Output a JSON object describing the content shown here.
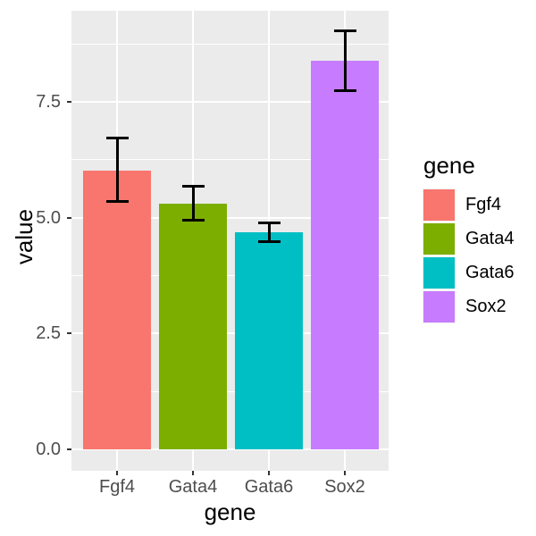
{
  "chart_data": {
    "type": "bar",
    "title": "",
    "xlabel": "gene",
    "ylabel": "value",
    "categories": [
      "Fgf4",
      "Gata4",
      "Gata6",
      "Sox2"
    ],
    "series": [
      {
        "name": "value",
        "values": [
          6.02,
          5.31,
          4.68,
          8.38
        ]
      }
    ],
    "error_bars": {
      "ymin": [
        5.35,
        4.95,
        4.49,
        7.74
      ],
      "ymax": [
        6.72,
        5.67,
        4.89,
        9.03
      ]
    },
    "bar_colors": [
      "#F8766D",
      "#7CAE00",
      "#00BFC4",
      "#C77CFF"
    ],
    "ylim": [
      -0.46,
      9.47
    ],
    "yticks": {
      "values": [
        0,
        2.5,
        5,
        7.5
      ],
      "labels": [
        "0.0",
        "2.5",
        "5.0",
        "7.5"
      ]
    },
    "minor_yticks": [
      1.25,
      3.75,
      6.25,
      8.75
    ],
    "grid": "on",
    "legend": {
      "position": "right",
      "title": "gene",
      "entries": [
        {
          "label": "Fgf4",
          "color": "#F8766D"
        },
        {
          "label": "Gata4",
          "color": "#7CAE00"
        },
        {
          "label": "Gata6",
          "color": "#00BFC4"
        },
        {
          "label": "Sox2",
          "color": "#C77CFF"
        }
      ]
    },
    "theme": {
      "panel_bg": "#EBEBEB",
      "grid_color": "#FFFFFF",
      "tick_text_color": "#4D4D4D",
      "title_text_color": "#000000",
      "errorbar_color": "#000000"
    }
  }
}
